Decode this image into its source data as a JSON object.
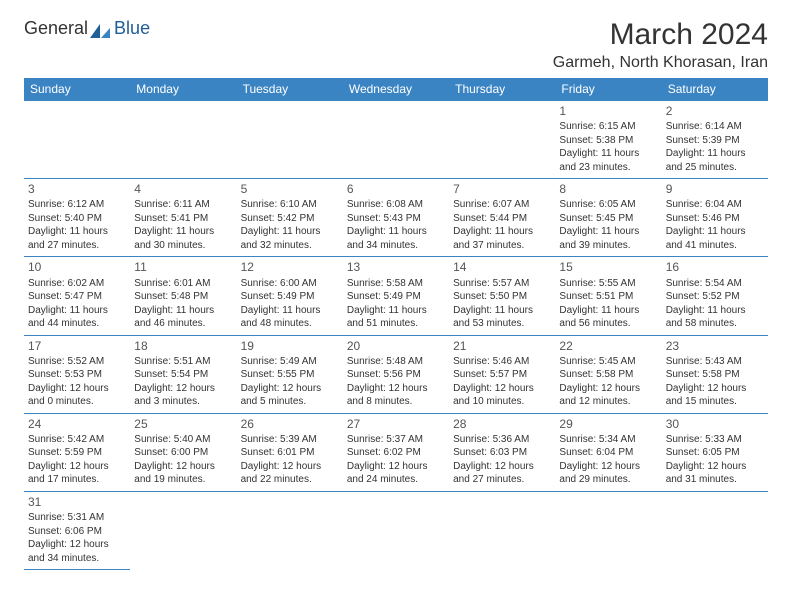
{
  "brand": {
    "name1": "General",
    "name2": "Blue"
  },
  "title": "March 2024",
  "location": "Garmeh, North Khorasan, Iran",
  "colors": {
    "header_bg": "#3b84c4",
    "header_text": "#ffffff",
    "border": "#3b84c4",
    "text": "#333333"
  },
  "weekdays": [
    "Sunday",
    "Monday",
    "Tuesday",
    "Wednesday",
    "Thursday",
    "Friday",
    "Saturday"
  ],
  "weeks": [
    [
      null,
      null,
      null,
      null,
      null,
      {
        "n": "1",
        "sunrise": "Sunrise: 6:15 AM",
        "sunset": "Sunset: 5:38 PM",
        "day1": "Daylight: 11 hours",
        "day2": "and 23 minutes."
      },
      {
        "n": "2",
        "sunrise": "Sunrise: 6:14 AM",
        "sunset": "Sunset: 5:39 PM",
        "day1": "Daylight: 11 hours",
        "day2": "and 25 minutes."
      }
    ],
    [
      {
        "n": "3",
        "sunrise": "Sunrise: 6:12 AM",
        "sunset": "Sunset: 5:40 PM",
        "day1": "Daylight: 11 hours",
        "day2": "and 27 minutes."
      },
      {
        "n": "4",
        "sunrise": "Sunrise: 6:11 AM",
        "sunset": "Sunset: 5:41 PM",
        "day1": "Daylight: 11 hours",
        "day2": "and 30 minutes."
      },
      {
        "n": "5",
        "sunrise": "Sunrise: 6:10 AM",
        "sunset": "Sunset: 5:42 PM",
        "day1": "Daylight: 11 hours",
        "day2": "and 32 minutes."
      },
      {
        "n": "6",
        "sunrise": "Sunrise: 6:08 AM",
        "sunset": "Sunset: 5:43 PM",
        "day1": "Daylight: 11 hours",
        "day2": "and 34 minutes."
      },
      {
        "n": "7",
        "sunrise": "Sunrise: 6:07 AM",
        "sunset": "Sunset: 5:44 PM",
        "day1": "Daylight: 11 hours",
        "day2": "and 37 minutes."
      },
      {
        "n": "8",
        "sunrise": "Sunrise: 6:05 AM",
        "sunset": "Sunset: 5:45 PM",
        "day1": "Daylight: 11 hours",
        "day2": "and 39 minutes."
      },
      {
        "n": "9",
        "sunrise": "Sunrise: 6:04 AM",
        "sunset": "Sunset: 5:46 PM",
        "day1": "Daylight: 11 hours",
        "day2": "and 41 minutes."
      }
    ],
    [
      {
        "n": "10",
        "sunrise": "Sunrise: 6:02 AM",
        "sunset": "Sunset: 5:47 PM",
        "day1": "Daylight: 11 hours",
        "day2": "and 44 minutes."
      },
      {
        "n": "11",
        "sunrise": "Sunrise: 6:01 AM",
        "sunset": "Sunset: 5:48 PM",
        "day1": "Daylight: 11 hours",
        "day2": "and 46 minutes."
      },
      {
        "n": "12",
        "sunrise": "Sunrise: 6:00 AM",
        "sunset": "Sunset: 5:49 PM",
        "day1": "Daylight: 11 hours",
        "day2": "and 48 minutes."
      },
      {
        "n": "13",
        "sunrise": "Sunrise: 5:58 AM",
        "sunset": "Sunset: 5:49 PM",
        "day1": "Daylight: 11 hours",
        "day2": "and 51 minutes."
      },
      {
        "n": "14",
        "sunrise": "Sunrise: 5:57 AM",
        "sunset": "Sunset: 5:50 PM",
        "day1": "Daylight: 11 hours",
        "day2": "and 53 minutes."
      },
      {
        "n": "15",
        "sunrise": "Sunrise: 5:55 AM",
        "sunset": "Sunset: 5:51 PM",
        "day1": "Daylight: 11 hours",
        "day2": "and 56 minutes."
      },
      {
        "n": "16",
        "sunrise": "Sunrise: 5:54 AM",
        "sunset": "Sunset: 5:52 PM",
        "day1": "Daylight: 11 hours",
        "day2": "and 58 minutes."
      }
    ],
    [
      {
        "n": "17",
        "sunrise": "Sunrise: 5:52 AM",
        "sunset": "Sunset: 5:53 PM",
        "day1": "Daylight: 12 hours",
        "day2": "and 0 minutes."
      },
      {
        "n": "18",
        "sunrise": "Sunrise: 5:51 AM",
        "sunset": "Sunset: 5:54 PM",
        "day1": "Daylight: 12 hours",
        "day2": "and 3 minutes."
      },
      {
        "n": "19",
        "sunrise": "Sunrise: 5:49 AM",
        "sunset": "Sunset: 5:55 PM",
        "day1": "Daylight: 12 hours",
        "day2": "and 5 minutes."
      },
      {
        "n": "20",
        "sunrise": "Sunrise: 5:48 AM",
        "sunset": "Sunset: 5:56 PM",
        "day1": "Daylight: 12 hours",
        "day2": "and 8 minutes."
      },
      {
        "n": "21",
        "sunrise": "Sunrise: 5:46 AM",
        "sunset": "Sunset: 5:57 PM",
        "day1": "Daylight: 12 hours",
        "day2": "and 10 minutes."
      },
      {
        "n": "22",
        "sunrise": "Sunrise: 5:45 AM",
        "sunset": "Sunset: 5:58 PM",
        "day1": "Daylight: 12 hours",
        "day2": "and 12 minutes."
      },
      {
        "n": "23",
        "sunrise": "Sunrise: 5:43 AM",
        "sunset": "Sunset: 5:58 PM",
        "day1": "Daylight: 12 hours",
        "day2": "and 15 minutes."
      }
    ],
    [
      {
        "n": "24",
        "sunrise": "Sunrise: 5:42 AM",
        "sunset": "Sunset: 5:59 PM",
        "day1": "Daylight: 12 hours",
        "day2": "and 17 minutes."
      },
      {
        "n": "25",
        "sunrise": "Sunrise: 5:40 AM",
        "sunset": "Sunset: 6:00 PM",
        "day1": "Daylight: 12 hours",
        "day2": "and 19 minutes."
      },
      {
        "n": "26",
        "sunrise": "Sunrise: 5:39 AM",
        "sunset": "Sunset: 6:01 PM",
        "day1": "Daylight: 12 hours",
        "day2": "and 22 minutes."
      },
      {
        "n": "27",
        "sunrise": "Sunrise: 5:37 AM",
        "sunset": "Sunset: 6:02 PM",
        "day1": "Daylight: 12 hours",
        "day2": "and 24 minutes."
      },
      {
        "n": "28",
        "sunrise": "Sunrise: 5:36 AM",
        "sunset": "Sunset: 6:03 PM",
        "day1": "Daylight: 12 hours",
        "day2": "and 27 minutes."
      },
      {
        "n": "29",
        "sunrise": "Sunrise: 5:34 AM",
        "sunset": "Sunset: 6:04 PM",
        "day1": "Daylight: 12 hours",
        "day2": "and 29 minutes."
      },
      {
        "n": "30",
        "sunrise": "Sunrise: 5:33 AM",
        "sunset": "Sunset: 6:05 PM",
        "day1": "Daylight: 12 hours",
        "day2": "and 31 minutes."
      }
    ],
    [
      {
        "n": "31",
        "sunrise": "Sunrise: 5:31 AM",
        "sunset": "Sunset: 6:06 PM",
        "day1": "Daylight: 12 hours",
        "day2": "and 34 minutes."
      },
      null,
      null,
      null,
      null,
      null,
      null
    ]
  ]
}
